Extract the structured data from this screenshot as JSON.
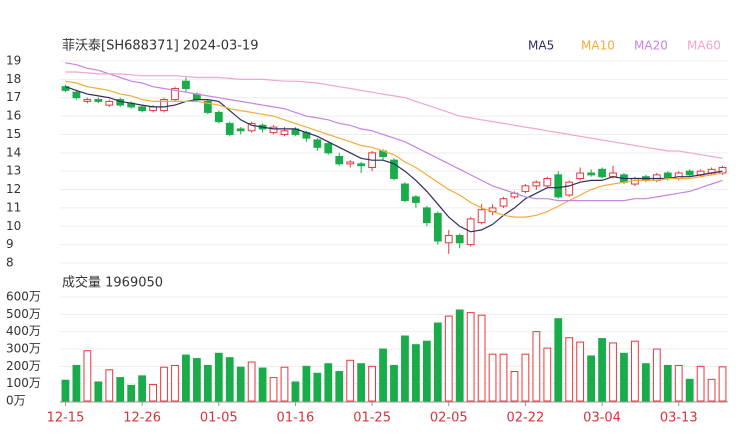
{
  "chart_data": [
    {
      "type": "candlestick",
      "title": "菲沃泰[SH688371] 2024-03-19",
      "categories": [
        "12-15",
        null,
        null,
        null,
        null,
        null,
        null,
        "12-26",
        null,
        null,
        null,
        null,
        null,
        null,
        "01-05",
        null,
        null,
        null,
        null,
        null,
        null,
        "01-16",
        null,
        null,
        null,
        null,
        null,
        null,
        "01-25",
        null,
        null,
        null,
        null,
        null,
        null,
        "02-05",
        null,
        null,
        null,
        null,
        null,
        null,
        "02-22",
        null,
        null,
        null,
        null,
        null,
        null,
        "03-04",
        null,
        null,
        null,
        null,
        null,
        null,
        "03-13",
        null,
        null,
        null,
        null
      ],
      "open": [
        17.6,
        17.3,
        16.8,
        16.9,
        16.6,
        16.9,
        16.7,
        16.5,
        16.3,
        16.3,
        16.9,
        17.9,
        17.2,
        16.8,
        16.2,
        15.6,
        15.3,
        15.2,
        15.5,
        15.1,
        15.0,
        15.3,
        15.1,
        14.7,
        14.5,
        13.8,
        13.4,
        13.4,
        13.2,
        14.1,
        13.6,
        12.3,
        11.6,
        11.0,
        10.7,
        9.1,
        9.5,
        9.0,
        10.2,
        10.8,
        11.1,
        11.6,
        11.9,
        12.2,
        12.2,
        12.8,
        11.7,
        12.6,
        12.9,
        13.1,
        12.7,
        12.8,
        12.3,
        12.7,
        12.5,
        12.9,
        12.6,
        13.0,
        12.8,
        12.9,
        12.9
      ],
      "high": [
        17.7,
        17.4,
        17.0,
        17.0,
        16.9,
        17.0,
        16.8,
        16.6,
        16.6,
        17.0,
        17.6,
        18.1,
        17.3,
        16.9,
        16.3,
        15.7,
        15.4,
        15.7,
        15.6,
        15.5,
        15.4,
        15.4,
        15.2,
        14.8,
        14.6,
        14.0,
        13.6,
        13.5,
        14.1,
        14.2,
        13.7,
        12.4,
        11.7,
        11.1,
        10.8,
        9.8,
        9.6,
        10.5,
        11.2,
        11.2,
        11.6,
        11.9,
        12.3,
        12.5,
        12.7,
        13.0,
        12.5,
        13.2,
        13.1,
        13.2,
        13.3,
        12.9,
        12.7,
        12.8,
        12.9,
        13.0,
        13.0,
        13.1,
        13.1,
        13.2,
        13.3
      ],
      "low": [
        17.3,
        16.9,
        16.7,
        16.7,
        16.5,
        16.5,
        16.4,
        16.2,
        16.2,
        16.2,
        16.8,
        17.3,
        16.8,
        16.1,
        15.6,
        14.9,
        15.0,
        15.1,
        15.1,
        15.0,
        14.9,
        14.9,
        14.6,
        14.1,
        13.9,
        13.3,
        13.2,
        12.9,
        13.0,
        13.6,
        12.5,
        11.3,
        11.0,
        10.0,
        9.0,
        8.5,
        8.8,
        8.9,
        10.1,
        10.6,
        11.0,
        11.5,
        11.8,
        12.0,
        12.1,
        11.5,
        11.6,
        12.5,
        12.7,
        12.6,
        12.6,
        12.3,
        12.2,
        12.4,
        12.4,
        12.5,
        12.5,
        12.7,
        12.7,
        12.8,
        12.8
      ],
      "close": [
        17.4,
        17.0,
        16.9,
        16.8,
        16.8,
        16.6,
        16.5,
        16.3,
        16.5,
        16.9,
        17.5,
        17.5,
        16.9,
        16.2,
        15.7,
        15.0,
        15.2,
        15.6,
        15.3,
        15.4,
        15.2,
        15.0,
        14.8,
        14.3,
        14.0,
        13.4,
        13.5,
        13.3,
        14.0,
        13.8,
        12.6,
        11.4,
        11.3,
        10.2,
        9.2,
        9.5,
        9.1,
        10.4,
        10.9,
        11.0,
        11.5,
        11.8,
        12.2,
        12.4,
        12.6,
        11.6,
        12.4,
        12.9,
        12.8,
        12.7,
        12.9,
        12.4,
        12.6,
        12.5,
        12.8,
        12.6,
        12.9,
        12.8,
        13.0,
        13.1,
        13.2
      ],
      "up_color": "#e8383d",
      "down_color": "#1aab4a",
      "series": [
        {
          "name": "MA5",
          "color": "#2b2d5c",
          "values": [
            17.6,
            17.4,
            17.2,
            17.1,
            17.0,
            16.8,
            16.7,
            16.6,
            16.5,
            16.5,
            16.6,
            16.8,
            16.9,
            16.9,
            16.8,
            16.3,
            15.8,
            15.5,
            15.4,
            15.3,
            15.3,
            15.3,
            15.1,
            14.9,
            14.6,
            14.3,
            14.0,
            13.7,
            13.6,
            13.6,
            13.4,
            13.0,
            12.5,
            11.9,
            11.2,
            10.5,
            10.0,
            9.7,
            9.8,
            10.1,
            10.6,
            11.0,
            11.5,
            11.8,
            12.1,
            12.1,
            12.2,
            12.4,
            12.5,
            12.5,
            12.7,
            12.6,
            12.6,
            12.6,
            12.6,
            12.6,
            12.7,
            12.7,
            12.8,
            12.9,
            13.0
          ]
        },
        {
          "name": "MA10",
          "color": "#f2ac3c",
          "values": [
            17.9,
            17.8,
            17.6,
            17.5,
            17.4,
            17.2,
            17.1,
            16.9,
            16.8,
            16.8,
            16.8,
            16.8,
            16.8,
            16.7,
            16.6,
            16.4,
            16.3,
            16.2,
            16.1,
            16.0,
            15.8,
            15.6,
            15.4,
            15.2,
            15.0,
            14.8,
            14.6,
            14.4,
            14.3,
            14.1,
            13.9,
            13.5,
            13.2,
            12.8,
            12.4,
            12.0,
            11.7,
            11.3,
            11.0,
            10.8,
            10.6,
            10.5,
            10.5,
            10.6,
            10.8,
            11.1,
            11.4,
            11.7,
            12.0,
            12.2,
            12.3,
            12.4,
            12.5,
            12.5,
            12.5,
            12.6,
            12.6,
            12.6,
            12.7,
            12.8,
            12.9
          ]
        },
        {
          "name": "MA20",
          "color": "#c485e3",
          "values": [
            18.9,
            18.8,
            18.6,
            18.5,
            18.3,
            18.1,
            17.9,
            17.8,
            17.6,
            17.5,
            17.4,
            17.3,
            17.2,
            17.1,
            17.0,
            16.9,
            16.8,
            16.7,
            16.6,
            16.5,
            16.4,
            16.2,
            16.0,
            15.9,
            15.8,
            15.6,
            15.5,
            15.3,
            15.2,
            15.0,
            14.8,
            14.6,
            14.3,
            14.0,
            13.7,
            13.4,
            13.1,
            12.8,
            12.5,
            12.2,
            12.0,
            11.8,
            11.6,
            11.5,
            11.5,
            11.4,
            11.4,
            11.4,
            11.4,
            11.4,
            11.4,
            11.4,
            11.5,
            11.5,
            11.6,
            11.7,
            11.8,
            11.9,
            12.1,
            12.3,
            12.5
          ]
        },
        {
          "name": "MA60",
          "color": "#f0a6cf",
          "values": [
            18.4,
            18.4,
            18.35,
            18.3,
            18.3,
            18.3,
            18.25,
            18.2,
            18.2,
            18.2,
            18.2,
            18.15,
            18.1,
            18.1,
            18.1,
            18.05,
            18.0,
            18.0,
            18.0,
            17.95,
            17.9,
            17.9,
            17.85,
            17.8,
            17.7,
            17.6,
            17.5,
            17.4,
            17.3,
            17.2,
            17.1,
            17.0,
            16.8,
            16.6,
            16.4,
            16.2,
            16.0,
            15.9,
            15.8,
            15.7,
            15.6,
            15.5,
            15.4,
            15.3,
            15.2,
            15.1,
            15.0,
            14.9,
            14.8,
            14.7,
            14.6,
            14.5,
            14.4,
            14.3,
            14.2,
            14.1,
            14.1,
            14.0,
            13.9,
            13.8,
            13.7
          ]
        }
      ],
      "ylim": [
        8,
        19
      ],
      "yticks": [
        8,
        9,
        10,
        11,
        12,
        13,
        14,
        15,
        16,
        17,
        18,
        19
      ],
      "grid": true
    },
    {
      "type": "bar",
      "title": "成交量 1969050",
      "values": [
        120,
        205,
        290,
        110,
        180,
        135,
        90,
        145,
        95,
        195,
        205,
        265,
        245,
        205,
        275,
        250,
        195,
        225,
        190,
        135,
        195,
        110,
        200,
        160,
        215,
        170,
        235,
        215,
        200,
        300,
        205,
        375,
        325,
        345,
        450,
        490,
        525,
        510,
        495,
        270,
        270,
        170,
        270,
        400,
        305,
        475,
        365,
        340,
        260,
        360,
        335,
        275,
        345,
        215,
        300,
        205,
        205,
        125,
        200,
        125,
        196.905
      ],
      "ylim": [
        0,
        600
      ],
      "yticks": [
        {
          "value": 0,
          "label": "0万"
        },
        {
          "value": 100,
          "label": "100万"
        },
        {
          "value": 200,
          "label": "200万"
        },
        {
          "value": 300,
          "label": "300万"
        },
        {
          "value": 400,
          "label": "400万"
        },
        {
          "value": 500,
          "label": "500万"
        },
        {
          "value": 600,
          "label": "600万"
        }
      ],
      "grid": true
    }
  ]
}
